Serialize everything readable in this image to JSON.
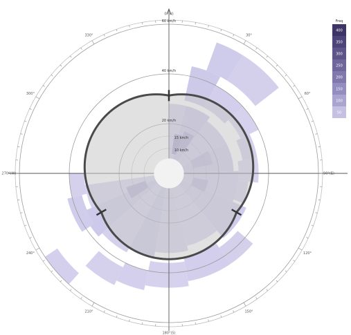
{
  "chart_data": {
    "type": "polar-bar",
    "radial_labels": [
      "20 km/h",
      "40 km/h",
      "60 km/h"
    ],
    "radial_values": [
      20,
      40,
      60
    ],
    "inner_labels": [
      "10 km/h",
      "15 km/h"
    ],
    "angle_labels": {
      "0": "0°(N)",
      "90": "90°(E)",
      "180": "180°(S)",
      "270": "270°(W)",
      "30": "30°",
      "60": "60°",
      "120": "120°",
      "150": "150°",
      "210": "210°",
      "240": "240°",
      "300": "300°",
      "330": "330°"
    },
    "legend": {
      "title": "Freq",
      "labels": [
        "400",
        "350",
        "300",
        "250",
        "200",
        "150",
        "100",
        "50"
      ],
      "colors": [
        "#3e3566",
        "#4d4479",
        "#5d558a",
        "#6f679b",
        "#8179ad",
        "#948dbf",
        "#aaa4d0",
        "#c6c1e2"
      ]
    },
    "wedges": [
      {
        "a0": 20,
        "a1": 32,
        "r0": 44,
        "r1": 56,
        "c": "#cfcbea"
      },
      {
        "a0": 32,
        "a1": 52,
        "r0": 44,
        "r1": 56,
        "c": "#d4d0ec"
      },
      {
        "a0": 12,
        "a1": 28,
        "r0": 30,
        "r1": 44,
        "c": "#cdc9e9"
      },
      {
        "a0": 28,
        "a1": 48,
        "r0": 30,
        "r1": 40,
        "c": "#d2ceeb"
      },
      {
        "a0": 48,
        "a1": 64,
        "r0": 32,
        "r1": 40,
        "c": "#d6d2ed"
      },
      {
        "a0": 64,
        "a1": 80,
        "r0": 30,
        "r1": 36,
        "c": "#d3cfeb"
      },
      {
        "a0": 80,
        "a1": 96,
        "r0": 28,
        "r1": 36,
        "c": "#d6d2ed"
      },
      {
        "a0": 96,
        "a1": 112,
        "r0": 28,
        "r1": 32,
        "c": "#d4d0ec"
      },
      {
        "a0": 0,
        "a1": 14,
        "r0": 6,
        "r1": 28,
        "c": "#d2ceeb"
      },
      {
        "a0": 14,
        "a1": 36,
        "r0": 6,
        "r1": 28,
        "c": "#cbc6e8"
      },
      {
        "a0": 36,
        "a1": 62,
        "r0": 6,
        "r1": 26,
        "c": "#d0cceb"
      },
      {
        "a0": 62,
        "a1": 88,
        "r0": 6,
        "r1": 26,
        "c": "#cdc8e9"
      },
      {
        "a0": 88,
        "a1": 114,
        "r0": 6,
        "r1": 28,
        "c": "#d1cdeb"
      },
      {
        "a0": 114,
        "a1": 140,
        "r0": 6,
        "r1": 34,
        "c": "#cfcbea"
      },
      {
        "a0": 140,
        "a1": 166,
        "r0": 6,
        "r1": 30,
        "c": "#d5d1ed"
      },
      {
        "a0": 166,
        "a1": 190,
        "r0": 6,
        "r1": 32,
        "c": "#d3cfec"
      },
      {
        "a0": 190,
        "a1": 208,
        "r0": 6,
        "r1": 34,
        "c": "#cbc7e8"
      },
      {
        "a0": 208,
        "a1": 228,
        "r0": 6,
        "r1": 36,
        "c": "#d5d1ed"
      },
      {
        "a0": 228,
        "a1": 246,
        "r0": 6,
        "r1": 38,
        "c": "#cdc9ea"
      },
      {
        "a0": 246,
        "a1": 262,
        "r0": 6,
        "r1": 34,
        "c": "#d6d3ee"
      },
      {
        "a0": 8,
        "a1": 20,
        "r0": 8,
        "r1": 16,
        "c": "#a79fd0"
      },
      {
        "a0": 20,
        "a1": 34,
        "r0": 10,
        "r1": 18,
        "c": "#b0a9d6"
      },
      {
        "a0": 60,
        "a1": 78,
        "r0": 10,
        "r1": 18,
        "c": "#bbb5dc"
      },
      {
        "a0": 100,
        "a1": 118,
        "r0": 10,
        "r1": 16,
        "c": "#bab4db"
      },
      {
        "a0": 236,
        "a1": 252,
        "r0": 10,
        "r1": 18,
        "c": "#b4aed8"
      },
      {
        "a0": 130,
        "a1": 146,
        "r0": 36,
        "r1": 44,
        "c": "#d4d0ec"
      },
      {
        "a0": 146,
        "a1": 170,
        "r0": 34,
        "r1": 44,
        "c": "#d2ceeb"
      },
      {
        "a0": 170,
        "a1": 192,
        "r0": 36,
        "r1": 46,
        "c": "#d6d2ed"
      },
      {
        "a0": 192,
        "a1": 206,
        "r0": 40,
        "r1": 48,
        "c": "#d3cfec"
      },
      {
        "a0": 206,
        "a1": 222,
        "r0": 42,
        "r1": 50,
        "c": "#d5d1ed"
      },
      {
        "a0": 222,
        "a1": 236,
        "r0": 54,
        "r1": 60,
        "c": "#d3cfec"
      },
      {
        "a0": 236,
        "a1": 256,
        "r0": 36,
        "r1": 42,
        "c": "#d0cceb"
      },
      {
        "a0": 256,
        "a1": 270,
        "r0": 34,
        "r1": 40,
        "c": "#d5d1ed"
      }
    ],
    "boundary_lobes": [
      0,
      120,
      240
    ]
  }
}
